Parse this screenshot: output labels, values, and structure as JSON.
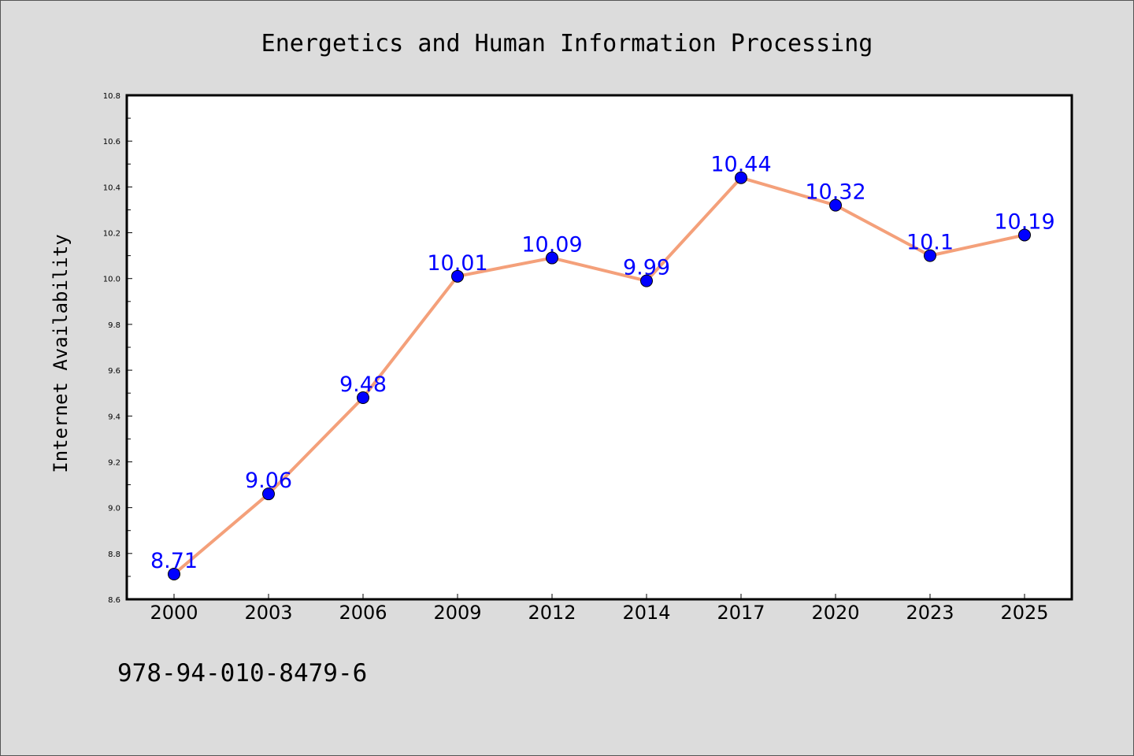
{
  "chart_data": {
    "type": "line",
    "title": "Energetics and Human Information Processing",
    "xlabel": "",
    "ylabel": "Internet Availability",
    "categories": [
      "2000",
      "2003",
      "2006",
      "2009",
      "2012",
      "2014",
      "2017",
      "2020",
      "2023",
      "2025"
    ],
    "series": [
      {
        "values": [
          8.71,
          9.06,
          9.48,
          10.01,
          10.09,
          9.99,
          10.44,
          10.32,
          10.1,
          10.19
        ],
        "labels": [
          "8.71",
          "9.06",
          "9.48",
          "10.01",
          "10.09",
          "9.99",
          "10.44",
          "10.32",
          "10.1",
          "10.19"
        ],
        "line_color": "#f4a07a",
        "marker_color": "#0000ff"
      }
    ],
    "ylim": [
      8.6,
      10.8
    ],
    "yticks": [
      "8.6",
      "8.8",
      "9.0",
      "9.2",
      "9.4",
      "9.6",
      "9.8",
      "10.0",
      "10.2",
      "10.4",
      "10.6",
      "10.8"
    ],
    "grid": false,
    "legend": "none"
  },
  "footer_text": "978-94-010-8479-6",
  "colors": {
    "background": "#dcdcdc",
    "plot_background": "#ffffff",
    "label": "#0000ff"
  }
}
